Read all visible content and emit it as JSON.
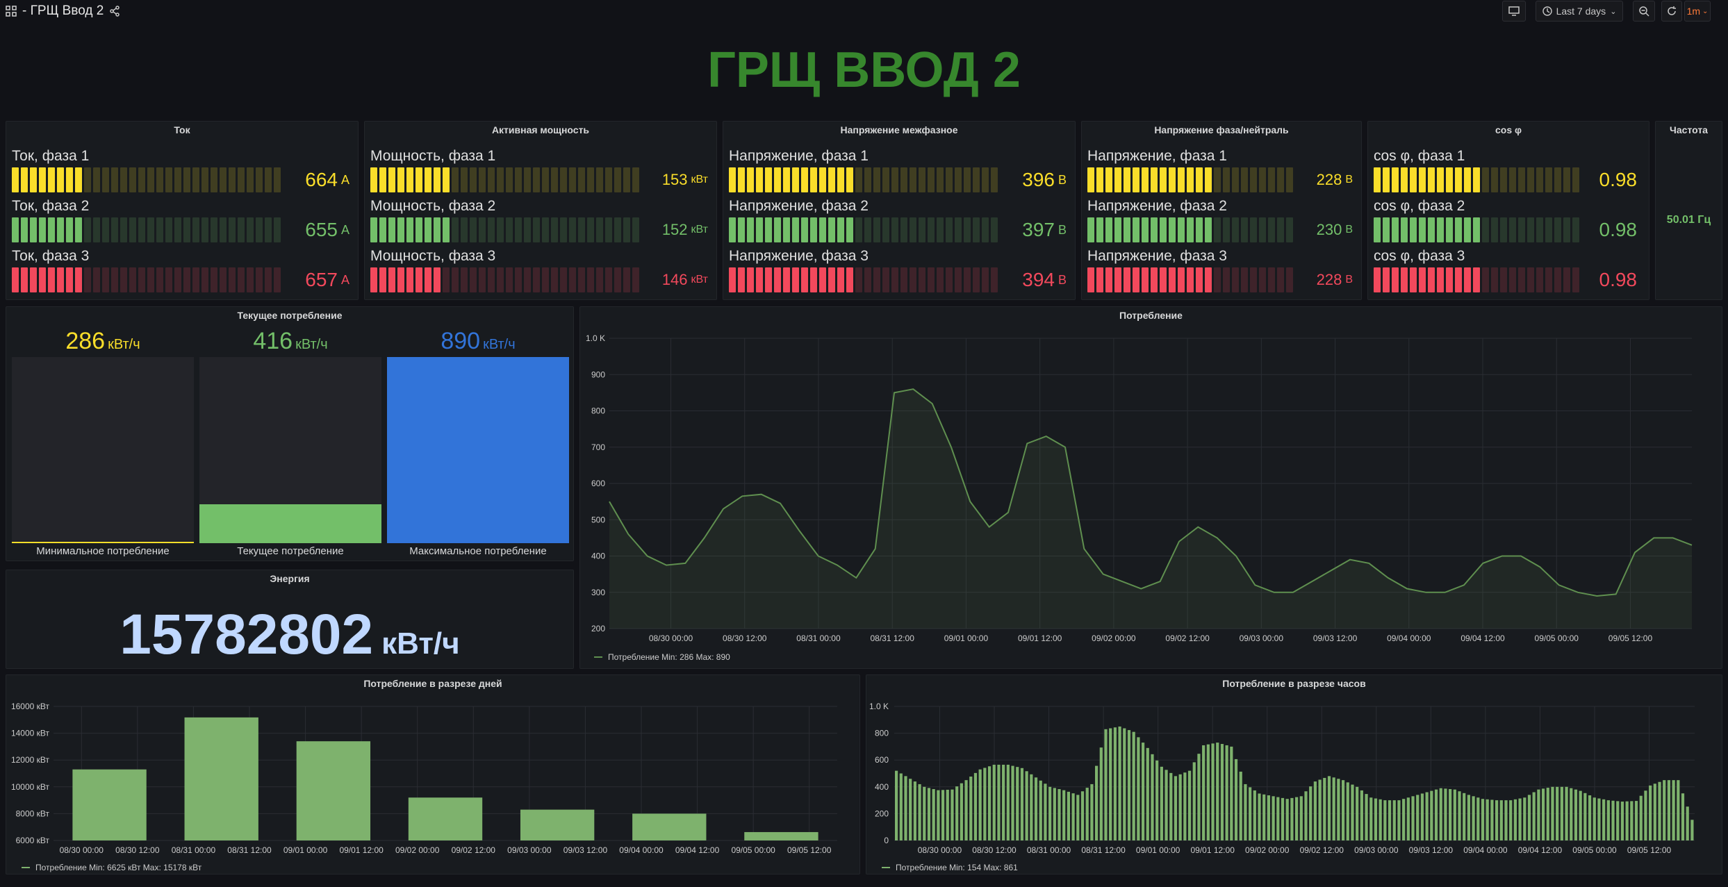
{
  "topbar": {
    "title": "- ГРЩ Ввод 2",
    "time_range": "Last 7 days",
    "refresh": "1m"
  },
  "big_title": "ГРЩ ВВОД 2",
  "colors": {
    "yellow": "#fade2a",
    "green": "#73bf69",
    "red": "#f2495c",
    "blue": "#3274d9",
    "line": "#5f8f4f"
  },
  "bargauges": [
    {
      "title": "Ток",
      "rows": [
        {
          "label": "Ток, фаза 1",
          "value": "664",
          "unit": "А",
          "color": "yellow",
          "fill": 0.25
        },
        {
          "label": "Ток, фаза 2",
          "value": "655",
          "unit": "А",
          "color": "green",
          "fill": 0.25
        },
        {
          "label": "Ток, фаза 3",
          "value": "657",
          "unit": "А",
          "color": "red",
          "fill": 0.25
        }
      ]
    },
    {
      "title": "Активная мощность",
      "rows": [
        {
          "label": "Мощность, фаза 1",
          "value": "153",
          "unit": "кВт",
          "color": "yellow",
          "fill": 0.3
        },
        {
          "label": "Мощность, фаза 2",
          "value": "152",
          "unit": "кВт",
          "color": "green",
          "fill": 0.3
        },
        {
          "label": "Мощность, фаза 3",
          "value": "146",
          "unit": "кВт",
          "color": "red",
          "fill": 0.28
        }
      ]
    },
    {
      "title": "Напряжение межфазное",
      "rows": [
        {
          "label": "Напряжение, фаза 1",
          "value": "396",
          "unit": "В",
          "color": "yellow",
          "fill": 0.46
        },
        {
          "label": "Напряжение, фаза 2",
          "value": "397",
          "unit": "В",
          "color": "green",
          "fill": 0.46
        },
        {
          "label": "Напряжение, фаза 3",
          "value": "394",
          "unit": "В",
          "color": "red",
          "fill": 0.46
        }
      ]
    },
    {
      "title": "Напряжение фаза/нейтраль",
      "rows": [
        {
          "label": "Напряжение, фаза 1",
          "value": "228",
          "unit": "В",
          "color": "yellow",
          "fill": 0.6
        },
        {
          "label": "Напряжение, фаза 2",
          "value": "230",
          "unit": "В",
          "color": "green",
          "fill": 0.6
        },
        {
          "label": "Напряжение, фаза 3",
          "value": "228",
          "unit": "В",
          "color": "red",
          "fill": 0.6
        }
      ]
    },
    {
      "title": "cos φ",
      "rows": [
        {
          "label": "cos φ, фаза 1",
          "value": "0.98",
          "unit": "",
          "color": "yellow",
          "fill": 0.5
        },
        {
          "label": "cos φ, фаза 2",
          "value": "0.98",
          "unit": "",
          "color": "green",
          "fill": 0.5
        },
        {
          "label": "cos φ, фаза 3",
          "value": "0.98",
          "unit": "",
          "color": "red",
          "fill": 0.5
        }
      ]
    }
  ],
  "frequency": {
    "title": "Частота",
    "value": "50.01 Гц"
  },
  "current_consumption": {
    "title": "Текущее потребление",
    "items": [
      {
        "value": "286",
        "unit": "кВт/ч",
        "caption": "Минимальное потребление",
        "color": "yellow",
        "level": 0.0
      },
      {
        "value": "416",
        "unit": "кВт/ч",
        "caption": "Текущее потребление",
        "color": "green",
        "level": 0.21
      },
      {
        "value": "890",
        "unit": "кВт/ч",
        "caption": "Максимальное потребление",
        "color": "blue",
        "level": 1.0
      }
    ]
  },
  "energy": {
    "title": "Энергия",
    "value": "15782802",
    "unit": "кВт/ч"
  },
  "chart_data": [
    {
      "type": "line",
      "title": "Потребление",
      "x_ticks": [
        "08/30 00:00",
        "08/30 12:00",
        "08/31 00:00",
        "08/31 12:00",
        "09/01 00:00",
        "09/01 12:00",
        "09/02 00:00",
        "09/02 12:00",
        "09/03 00:00",
        "09/03 12:00",
        "09/04 00:00",
        "09/04 12:00",
        "09/05 00:00",
        "09/05 12:00"
      ],
      "y_ticks": [
        "1.0 K",
        "900",
        "800",
        "700",
        "600",
        "500",
        "400",
        "300",
        "200"
      ],
      "ylim": [
        200,
        1000
      ],
      "series": [
        {
          "name": "Потребление",
          "min": "286",
          "max": "890"
        }
      ],
      "legend_text": "Потребление  Min: 286  Max: 890",
      "x_hours": [
        0,
        3,
        6,
        9,
        12,
        15,
        18,
        21,
        24,
        27,
        30,
        33,
        36,
        39,
        42,
        45,
        48,
        51,
        54,
        57,
        60,
        63,
        66,
        69,
        72,
        75,
        78,
        81,
        84,
        87,
        90,
        93,
        96,
        99,
        102,
        105,
        108,
        111,
        114,
        117,
        120,
        123,
        126,
        129,
        132,
        135,
        138,
        141,
        144,
        147,
        150,
        153,
        156,
        159,
        162,
        165,
        168,
        171
      ],
      "values": [
        550,
        460,
        400,
        375,
        380,
        450,
        530,
        565,
        570,
        545,
        470,
        400,
        375,
        340,
        420,
        850,
        860,
        820,
        700,
        550,
        480,
        520,
        710,
        730,
        700,
        420,
        350,
        330,
        310,
        330,
        440,
        480,
        450,
        400,
        320,
        300,
        300,
        330,
        360,
        390,
        380,
        340,
        310,
        300,
        300,
        320,
        380,
        400,
        400,
        370,
        320,
        300,
        290,
        295,
        410,
        450,
        450,
        430
      ]
    },
    {
      "type": "bar",
      "title": "Потребление в разрезе дней",
      "x_ticks": [
        "08/30 00:00",
        "08/30 12:00",
        "08/31 00:00",
        "08/31 12:00",
        "09/01 00:00",
        "09/01 12:00",
        "09/02 00:00",
        "09/02 12:00",
        "09/03 00:00",
        "09/03 12:00",
        "09/04 00:00",
        "09/04 12:00",
        "09/05 00:00",
        "09/05 12:00"
      ],
      "y_ticks": [
        "16000 кВт",
        "14000 кВт",
        "12000 кВт",
        "10000 кВт",
        "8000 кВт",
        "6000 кВт"
      ],
      "ylim": [
        6000,
        16000
      ],
      "categories": [
        "08/30",
        "08/31",
        "09/01",
        "09/02",
        "09/03",
        "09/04",
        "09/05"
      ],
      "series": [
        {
          "name": "Потребление",
          "min": "6625 кВт",
          "max": "15178 кВт"
        }
      ],
      "values": [
        11300,
        15178,
        13400,
        9200,
        8300,
        8000,
        6625
      ],
      "legend_text": "Потребление  Min: 6625 кВт  Max: 15178 кВт"
    },
    {
      "type": "bar",
      "title": "Потребление в разрезе часов",
      "x_ticks": [
        "08/30 00:00",
        "08/30 12:00",
        "08/31 00:00",
        "08/31 12:00",
        "09/01 00:00",
        "09/01 12:00",
        "09/02 00:00",
        "09/02 12:00",
        "09/03 00:00",
        "09/03 12:00",
        "09/04 00:00",
        "09/04 12:00",
        "09/05 00:00",
        "09/05 12:00"
      ],
      "y_ticks": [
        "1.0 K",
        "800",
        "600",
        "400",
        "200",
        "0"
      ],
      "ylim": [
        0,
        1000
      ],
      "series": [
        {
          "name": "Потребление",
          "min": "154",
          "max": "861"
        }
      ],
      "x_hours": [
        0,
        3,
        6,
        9,
        12,
        15,
        18,
        21,
        24,
        27,
        30,
        33,
        36,
        39,
        42,
        45,
        48,
        51,
        54,
        57,
        60,
        63,
        66,
        69,
        72,
        75,
        78,
        81,
        84,
        87,
        90,
        93,
        96,
        99,
        102,
        105,
        108,
        111,
        114,
        117,
        120,
        123,
        126,
        129,
        132,
        135,
        138,
        141,
        144,
        147,
        150,
        153,
        156,
        159,
        162,
        165,
        168,
        171
      ],
      "values": [
        520,
        460,
        400,
        375,
        380,
        450,
        530,
        565,
        565,
        540,
        470,
        400,
        375,
        340,
        420,
        830,
        850,
        810,
        690,
        550,
        480,
        520,
        710,
        730,
        700,
        420,
        350,
        330,
        310,
        330,
        440,
        480,
        450,
        400,
        320,
        300,
        300,
        330,
        360,
        390,
        380,
        340,
        310,
        300,
        300,
        320,
        380,
        400,
        400,
        370,
        320,
        300,
        290,
        295,
        410,
        450,
        450,
        154
      ],
      "legend_text": "Потребление  Min: 154  Max: 861"
    }
  ]
}
